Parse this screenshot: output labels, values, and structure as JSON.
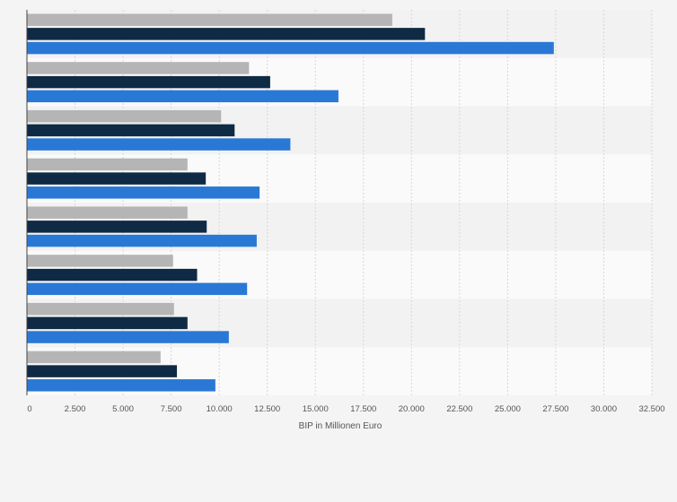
{
  "chart_data": {
    "type": "bar",
    "orientation": "horizontal",
    "xlabel": "BIP in Millionen Euro",
    "xlim": [
      0,
      32500
    ],
    "x_ticks": [
      0,
      2500,
      5000,
      7500,
      10000,
      12500,
      15000,
      17500,
      20000,
      22500,
      25000,
      27500,
      30000,
      32500
    ],
    "x_tick_labels": [
      "0",
      "2.500",
      "5.000",
      "7.500",
      "10.000",
      "12.500",
      "15.000",
      "17.500",
      "20.000",
      "22.500",
      "25.000",
      "27.500",
      "30.000",
      "32.500"
    ],
    "grid": true,
    "category_count": 8,
    "series": [
      {
        "color": "#b5b5b5",
        "values": [
          19000,
          11550,
          10100,
          8350,
          8350,
          7600,
          7650,
          6950
        ]
      },
      {
        "color": "#0f2a44",
        "values": [
          20700,
          12650,
          10800,
          9300,
          9350,
          8850,
          8350,
          7800
        ]
      },
      {
        "color": "#2a78d6",
        "values": [
          27400,
          16200,
          13700,
          12100,
          11950,
          11450,
          10500,
          9800
        ]
      }
    ]
  }
}
